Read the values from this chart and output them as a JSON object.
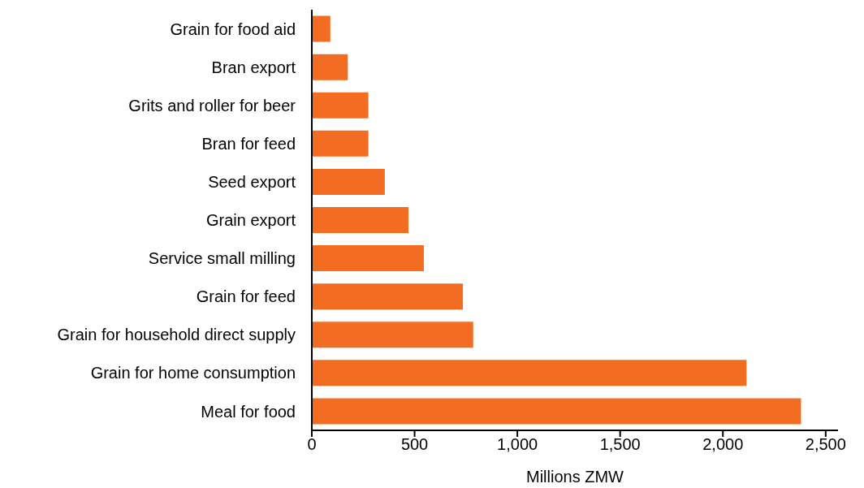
{
  "chart_data": {
    "type": "bar",
    "orientation": "horizontal",
    "xlabel": "Millions ZMW",
    "categories": [
      "Grain for food aid",
      "Bran export",
      "Grits and roller for beer",
      "Bran for feed",
      "Seed export",
      "Grain export",
      "Service small milling",
      "Grain for feed",
      "Grain for household direct supply",
      "Grain for home consumption",
      "Meal for food"
    ],
    "values": [
      90,
      175,
      275,
      275,
      355,
      470,
      545,
      735,
      785,
      2115,
      2380
    ],
    "color": "#f26c21",
    "xlim": [
      0,
      2560
    ],
    "xticks": [
      0,
      500,
      {
        "value": 1000,
        "label": "1,000"
      },
      {
        "value": 1500,
        "label": "1,500"
      },
      {
        "value": 2000,
        "label": "2,000"
      },
      {
        "value": 2500,
        "label": "2,500"
      }
    ],
    "grid": false,
    "legend": false
  }
}
